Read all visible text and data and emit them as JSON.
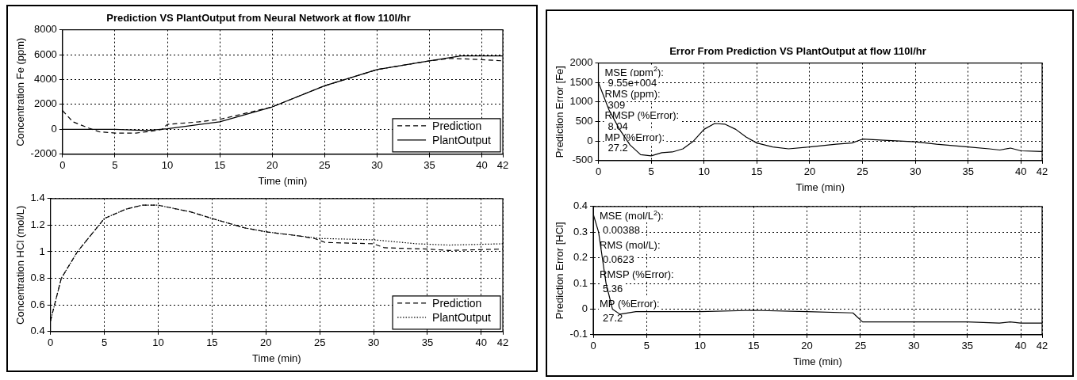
{
  "chart_data": [
    {
      "type": "line",
      "title": "Prediction VS PlantOutput from Neural Network at flow 110l/hr",
      "xlabel": "Time (min)",
      "ylabel": "Concentration Fe (ppm)",
      "xlim": [
        0,
        42
      ],
      "xticks": [
        0,
        5,
        10,
        15,
        20,
        25,
        30,
        35,
        40,
        42
      ],
      "ylim": [
        -2000,
        8000
      ],
      "yticks": [
        -2000,
        0,
        2000,
        4000,
        6000,
        8000
      ],
      "grid": true,
      "legend": "bottom right",
      "series": [
        {
          "name": "Prediction",
          "color": "#000000",
          "line_style": "dashed",
          "x": [
            0,
            1,
            2.5,
            3.5,
            5,
            7,
            8.5,
            9.5,
            10,
            13,
            15,
            17,
            20,
            25,
            30,
            35,
            37,
            40,
            42
          ],
          "values": [
            1500,
            600,
            100,
            -200,
            -300,
            -300,
            -150,
            0,
            400,
            600,
            800,
            1200,
            1800,
            3500,
            4800,
            5500,
            5700,
            5600,
            5500
          ]
        },
        {
          "name": "PlantOutput",
          "color": "#000000",
          "line_style": "solid",
          "x": [
            0,
            5,
            8,
            10,
            15,
            20,
            25,
            30,
            35,
            38,
            42
          ],
          "values": [
            0,
            0,
            -100,
            50,
            600,
            1800,
            3500,
            4800,
            5500,
            5900,
            5900
          ]
        }
      ]
    },
    {
      "type": "line",
      "xlabel": "Time (min)",
      "ylabel": "Concentration HCl (mol/L)",
      "xlim": [
        0,
        42
      ],
      "xticks": [
        0,
        5,
        10,
        15,
        20,
        25,
        30,
        35,
        40,
        42
      ],
      "ylim": [
        0.4,
        1.4
      ],
      "yticks": [
        0.4,
        0.6,
        0.8,
        1,
        1.2,
        1.4
      ],
      "grid": true,
      "legend": "bottom right",
      "series": [
        {
          "name": "Prediction",
          "color": "#000000",
          "line_style": "dashed",
          "x": [
            0,
            1,
            2.5,
            4,
            5,
            7,
            8.5,
            10,
            13,
            15,
            18,
            20,
            23,
            24.5,
            25.5,
            30,
            31,
            35,
            37,
            42
          ],
          "values": [
            0.48,
            0.8,
            1.0,
            1.15,
            1.25,
            1.32,
            1.35,
            1.35,
            1.3,
            1.25,
            1.18,
            1.15,
            1.12,
            1.1,
            1.07,
            1.06,
            1.03,
            1.02,
            1.01,
            1.02
          ]
        },
        {
          "name": "PlantOutput",
          "color": "#000000",
          "line_style": "dotted",
          "x": [
            0,
            1,
            2.5,
            4,
            5,
            7,
            8.5,
            10,
            13,
            15,
            18,
            20,
            23,
            25,
            30,
            34,
            37,
            42
          ],
          "values": [
            0.48,
            0.8,
            1.0,
            1.15,
            1.25,
            1.32,
            1.35,
            1.35,
            1.3,
            1.25,
            1.18,
            1.15,
            1.12,
            1.1,
            1.09,
            1.06,
            1.05,
            1.06
          ]
        }
      ]
    },
    {
      "type": "line",
      "title": "Error From Prediction VS PlantOutput at flow 110l/hr",
      "xlabel": "Time (min)",
      "ylabel": "Prediction Error [Fe]",
      "xlim": [
        0,
        42
      ],
      "xticks": [
        0,
        5,
        10,
        15,
        20,
        25,
        30,
        35,
        40,
        42
      ],
      "ylim": [
        -500,
        2000
      ],
      "yticks": [
        -500,
        0,
        500,
        1000,
        1500,
        2000
      ],
      "grid": true,
      "annotations": [
        "MSE (ppm$^{2}$):",
        "9.55e+004",
        "RMS (ppm):",
        "309",
        "RMSP (%Error):",
        "8.04",
        "MP (%Error):",
        "27.2"
      ],
      "series": [
        {
          "color": "#000000",
          "line_style": "solid",
          "x": [
            0,
            1,
            2,
            3,
            4,
            5,
            6,
            7,
            8,
            9,
            10,
            11,
            12,
            13,
            14,
            15,
            16.5,
            18,
            20,
            22.5,
            24,
            25,
            27,
            30,
            32,
            35,
            37,
            38,
            39,
            40,
            42
          ],
          "values": [
            1500,
            800,
            300,
            -100,
            -350,
            -380,
            -300,
            -280,
            -200,
            0,
            300,
            450,
            430,
            300,
            100,
            -50,
            -150,
            -200,
            -150,
            -80,
            -50,
            50,
            20,
            -20,
            -80,
            -150,
            -200,
            -230,
            -180,
            -250,
            -270
          ]
        }
      ]
    },
    {
      "type": "line",
      "xlabel": "Time (min)",
      "ylabel": "Prediction Error [HCl]",
      "xlim": [
        0,
        42
      ],
      "xticks": [
        0,
        5,
        10,
        15,
        20,
        25,
        30,
        35,
        40,
        42
      ],
      "ylim": [
        -0.1,
        0.4
      ],
      "yticks": [
        -0.1,
        0,
        0.1,
        0.2,
        0.3,
        0.4
      ],
      "grid": true,
      "annotations": [
        "MSE (mol/L$^{2}$):",
        "0.00388",
        "RMS (mol/L):",
        "0.0623",
        "RMSP (%Error):",
        "5.36",
        "MP (%Error):",
        "27.2"
      ],
      "series": [
        {
          "color": "#000000",
          "line_style": "solid",
          "x": [
            0,
            0.5,
            1.2,
            1.8,
            2.5,
            4,
            10,
            15,
            20,
            24.3,
            25.2,
            30,
            35,
            38,
            39,
            40,
            42
          ],
          "values": [
            0.37,
            0.3,
            0.1,
            0,
            -0.02,
            -0.01,
            -0.01,
            -0.005,
            -0.01,
            -0.015,
            -0.05,
            -0.05,
            -0.05,
            -0.055,
            -0.05,
            -0.055,
            -0.055
          ]
        }
      ]
    }
  ]
}
